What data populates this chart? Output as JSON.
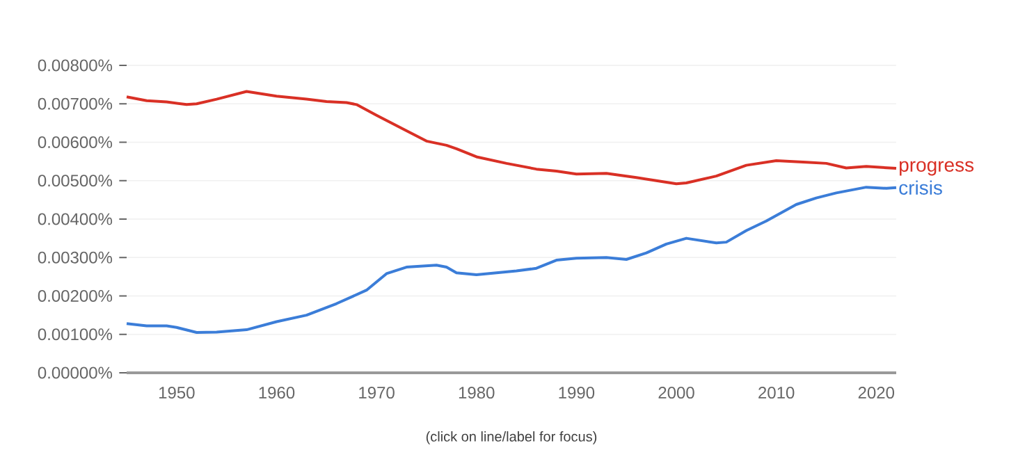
{
  "chart_data": {
    "type": "line",
    "xlim": [
      1945,
      2022
    ],
    "ylim": [
      0,
      0.008
    ],
    "xticks": [
      1950,
      1960,
      1970,
      1980,
      1990,
      2000,
      2010,
      2020
    ],
    "yticks": [
      {
        "value": 0,
        "label": "0.00000%"
      },
      {
        "value": 0.001,
        "label": "0.00100%"
      },
      {
        "value": 0.002,
        "label": "0.00200%"
      },
      {
        "value": 0.003,
        "label": "0.00300%"
      },
      {
        "value": 0.004,
        "label": "0.00400%"
      },
      {
        "value": 0.005,
        "label": "0.00500%"
      },
      {
        "value": 0.006,
        "label": "0.00600%"
      },
      {
        "value": 0.007,
        "label": "0.00700%"
      },
      {
        "value": 0.008,
        "label": "0.00800%"
      }
    ],
    "grid": "y",
    "legend": false,
    "marker": "none",
    "line_style": "solid",
    "annotations": [
      "(click on line/label for focus)"
    ],
    "series": [
      {
        "name": "progress",
        "color": "#d93025",
        "x": [
          1945,
          1947,
          1949,
          1951,
          1952,
          1954,
          1957,
          1960,
          1963,
          1965,
          1967,
          1968,
          1970,
          1973,
          1975,
          1977,
          1978,
          1980,
          1983,
          1986,
          1988,
          1990,
          1993,
          1996,
          1998,
          2000,
          2001,
          2004,
          2007,
          2010,
          2013,
          2015,
          2017,
          2019,
          2022
        ],
        "values": [
          0.00718,
          0.00708,
          0.00705,
          0.00698,
          0.007,
          0.00712,
          0.00732,
          0.0072,
          0.00712,
          0.00706,
          0.00703,
          0.00698,
          0.0067,
          0.0063,
          0.00603,
          0.00592,
          0.00583,
          0.00562,
          0.00545,
          0.0053,
          0.00525,
          0.00517,
          0.00519,
          0.00508,
          0.005,
          0.00492,
          0.00494,
          0.00512,
          0.0054,
          0.00552,
          0.00548,
          0.00545,
          0.00533,
          0.00537,
          0.00532
        ]
      },
      {
        "name": "crisis",
        "color": "#3b7dd8",
        "x": [
          1945,
          1947,
          1949,
          1950,
          1952,
          1954,
          1957,
          1960,
          1963,
          1966,
          1969,
          1971,
          1973,
          1976,
          1977,
          1978,
          1980,
          1984,
          1986,
          1988,
          1990,
          1993,
          1995,
          1997,
          1999,
          2001,
          2004,
          2005,
          2007,
          2009,
          2012,
          2014,
          2016,
          2018,
          2019,
          2021,
          2022
        ],
        "values": [
          0.00128,
          0.00122,
          0.00122,
          0.00118,
          0.00105,
          0.00106,
          0.00112,
          0.00133,
          0.0015,
          0.0018,
          0.00215,
          0.00258,
          0.00275,
          0.0028,
          0.00275,
          0.0026,
          0.00255,
          0.00265,
          0.00272,
          0.00293,
          0.00298,
          0.003,
          0.00295,
          0.00312,
          0.00335,
          0.0035,
          0.00338,
          0.0034,
          0.0037,
          0.00395,
          0.00438,
          0.00455,
          0.00468,
          0.00478,
          0.00483,
          0.0048,
          0.00482
        ]
      }
    ]
  }
}
